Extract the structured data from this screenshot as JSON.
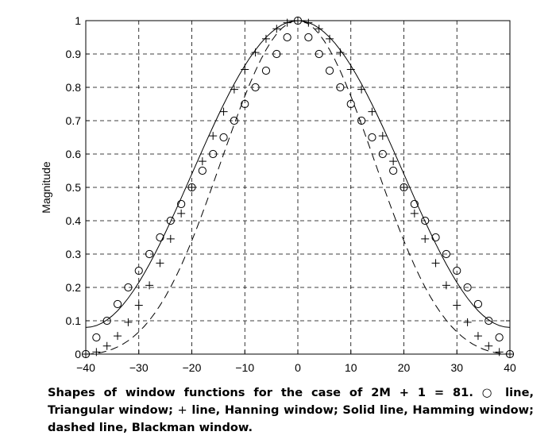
{
  "chart_data": {
    "type": "line",
    "ylabel": "Magnitude",
    "xlabel": "",
    "xlim": [
      -40,
      40
    ],
    "ylim": [
      0,
      1
    ],
    "x_ticks": [
      -40,
      -30,
      -20,
      -10,
      0,
      10,
      20,
      30,
      40
    ],
    "y_ticks": [
      0,
      0.1,
      0.2,
      0.3,
      0.4,
      0.5,
      0.6,
      0.7,
      0.8,
      0.9,
      1
    ],
    "x_tick_labels": [
      "−40",
      "−30",
      "−20",
      "−10",
      "0",
      "10",
      "20",
      "30",
      "40"
    ],
    "y_tick_labels": [
      "0",
      "0.1",
      "0.2",
      "0.3",
      "0.4",
      "0.5",
      "0.6",
      "0.7",
      "0.8",
      "0.9",
      "1"
    ],
    "grid": true,
    "grid_style": "dashed",
    "series": [
      {
        "style": "circle markers",
        "window": "triangular",
        "n_min": -40,
        "n_max": 40,
        "step": 2
      },
      {
        "style": "plus markers",
        "window": "hanning",
        "n_min": -40,
        "n_max": 40,
        "step": 2
      },
      {
        "style": "solid line",
        "window": "hamming",
        "n_min": -40,
        "n_max": 40,
        "step": 1
      },
      {
        "style": "dashed line",
        "window": "blackman",
        "n_min": -40,
        "n_max": 40,
        "step": 1
      }
    ],
    "caption_parts": [
      "Shapes of window functions for the case of 2M + 1 = 81. ",
      "○",
      " line, Triangular window; ",
      "+",
      " line, Hanning window; Solid line, Hamming window; dashed line, Blackman window."
    ]
  }
}
